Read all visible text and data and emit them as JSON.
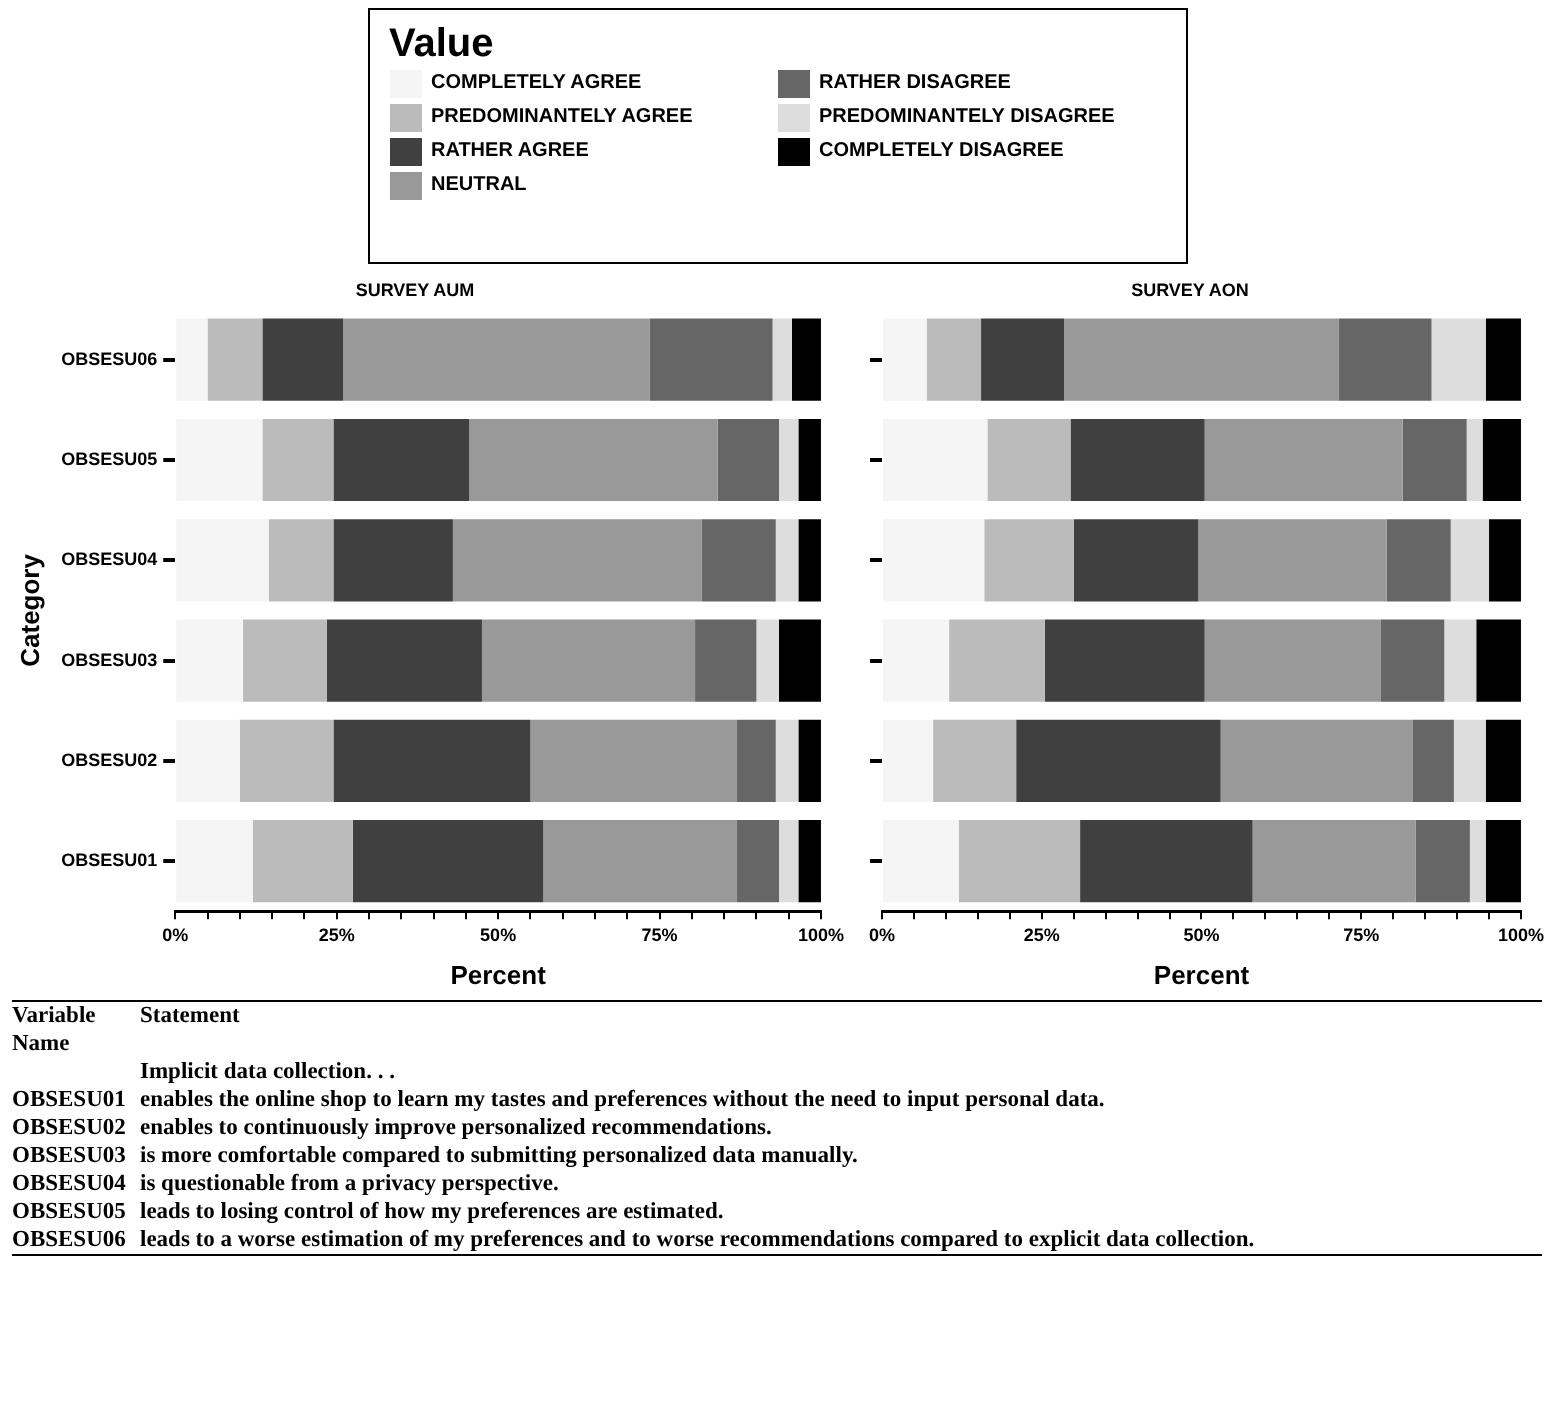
{
  "chart_data": [
    {
      "type": "bar",
      "orientation": "horizontal",
      "stacked": true,
      "title": "SURVEY AUM",
      "xlabel": "Percent",
      "ylabel": "Category",
      "legend_title": "Value",
      "legend": "top",
      "grid": false,
      "categories": [
        "OBSESU06",
        "OBSESU05",
        "OBSESU04",
        "OBSESU03",
        "OBSESU02",
        "OBSESU01"
      ],
      "xlim": [
        0,
        100
      ],
      "xticks": [
        {
          "value": 0,
          "label": "0%"
        },
        {
          "value": 5,
          "label": null
        },
        {
          "value": 10,
          "label": null
        },
        {
          "value": 15,
          "label": null
        },
        {
          "value": 20,
          "label": null
        },
        {
          "value": 25,
          "label": "25%"
        },
        {
          "value": 30,
          "label": null
        },
        {
          "value": 35,
          "label": null
        },
        {
          "value": 40,
          "label": null
        },
        {
          "value": 45,
          "label": null
        },
        {
          "value": 50,
          "label": "50%"
        },
        {
          "value": 55,
          "label": null
        },
        {
          "value": 60,
          "label": null
        },
        {
          "value": 65,
          "label": null
        },
        {
          "value": 70,
          "label": null
        },
        {
          "value": 75,
          "label": "75%"
        },
        {
          "value": 80,
          "label": null
        },
        {
          "value": 85,
          "label": null
        },
        {
          "value": 90,
          "label": null
        },
        {
          "value": 95,
          "label": null
        },
        {
          "value": 100,
          "label": "100%"
        }
      ],
      "series": [
        {
          "name": "COMPLETELY AGREE",
          "color": "#f5f5f5",
          "values": [
            5,
            13.5,
            14.5,
            10.5,
            10,
            12
          ]
        },
        {
          "name": "PREDOMINANTELY AGREE",
          "color": "#bbbbbb",
          "values": [
            8.5,
            11,
            10,
            13,
            14.5,
            15.5
          ]
        },
        {
          "name": "RATHER AGREE",
          "color": "#404040",
          "values": [
            12.5,
            21,
            18.5,
            24,
            30.5,
            29.5
          ]
        },
        {
          "name": "NEUTRAL",
          "color": "#999999",
          "values": [
            47.5,
            38.5,
            38.5,
            33,
            32,
            30
          ]
        },
        {
          "name": "RATHER DISAGREE",
          "color": "#666666",
          "values": [
            19,
            9.5,
            11.5,
            9.5,
            6,
            6.5
          ]
        },
        {
          "name": "PREDOMINANTELY DISAGREE",
          "color": "#dddddd",
          "values": [
            3,
            3,
            3.5,
            3.5,
            3.5,
            3
          ]
        },
        {
          "name": "COMPLETELY DISAGREE",
          "color": "#000000",
          "values": [
            4.5,
            3.5,
            3.5,
            6.5,
            3.5,
            3.5
          ]
        }
      ]
    },
    {
      "type": "bar",
      "orientation": "horizontal",
      "stacked": true,
      "title": "SURVEY AON",
      "xlabel": "Percent",
      "tick_labels": "x",
      "grid": false,
      "categories": [
        null,
        null,
        null,
        null,
        null,
        null
      ],
      "xlim": [
        0,
        100
      ],
      "xticks": [
        {
          "value": 0,
          "label": "0%"
        },
        {
          "value": 5,
          "label": null
        },
        {
          "value": 10,
          "label": null
        },
        {
          "value": 15,
          "label": null
        },
        {
          "value": 20,
          "label": null
        },
        {
          "value": 25,
          "label": "25%"
        },
        {
          "value": 30,
          "label": null
        },
        {
          "value": 35,
          "label": null
        },
        {
          "value": 40,
          "label": null
        },
        {
          "value": 45,
          "label": null
        },
        {
          "value": 50,
          "label": "50%"
        },
        {
          "value": 55,
          "label": null
        },
        {
          "value": 60,
          "label": null
        },
        {
          "value": 65,
          "label": null
        },
        {
          "value": 70,
          "label": null
        },
        {
          "value": 75,
          "label": "75%"
        },
        {
          "value": 80,
          "label": null
        },
        {
          "value": 85,
          "label": null
        },
        {
          "value": 90,
          "label": null
        },
        {
          "value": 95,
          "label": null
        },
        {
          "value": 100,
          "label": "100%"
        }
      ],
      "series": [
        {
          "color": "#f5f5f5",
          "values": [
            7,
            16.5,
            16,
            10.5,
            8,
            12
          ]
        },
        {
          "color": "#bbbbbb",
          "values": [
            8.5,
            13,
            14,
            15,
            13,
            19
          ]
        },
        {
          "color": "#404040",
          "values": [
            13,
            21,
            19.5,
            25,
            32,
            27
          ]
        },
        {
          "color": "#999999",
          "values": [
            43,
            31,
            29.5,
            27.5,
            30,
            25.5
          ]
        },
        {
          "color": "#666666",
          "values": [
            14.5,
            10,
            10,
            10,
            6.5,
            8.5
          ]
        },
        {
          "color": "#dddddd",
          "values": [
            8.5,
            2.5,
            6,
            5,
            5,
            2.5
          ]
        },
        {
          "color": "#000000",
          "values": [
            5.5,
            6,
            5,
            7,
            5.5,
            5.5
          ]
        }
      ]
    },
    {
      "type": "other",
      "annotations": [
        "Variable Name",
        "Statement",
        "Implicit data collection. . .",
        "OBSESU01",
        "enables the online shop to learn my tastes and preferences without the need to input personal data.",
        "OBSESU02",
        "enables to continuously improve personalized recommendations.",
        "OBSESU03",
        "is more comfortable compared to submitting personalized data manually.",
        "OBSESU04",
        "is questionable from a privacy perspective.",
        "OBSESU05",
        "leads to losing control of how my preferences are estimated.",
        "OBSESU06",
        "leads to a worse estimation of my preferences and to worse recommendations compared to explicit data collection."
      ]
    }
  ]
}
